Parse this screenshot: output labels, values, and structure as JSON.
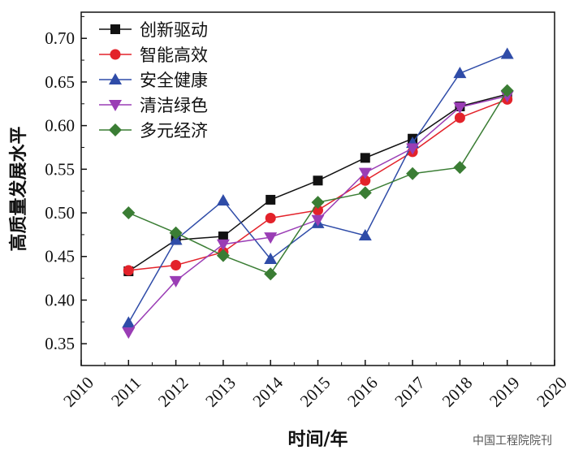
{
  "chart_data": {
    "type": "line",
    "xlabel": "时间/年",
    "ylabel": "高质量发展水平",
    "xlim": [
      2010,
      2020
    ],
    "ylim": [
      0.325,
      0.73
    ],
    "xticks": [
      "2010",
      "2011",
      "2012",
      "2013",
      "2014",
      "2015",
      "2016",
      "2017",
      "2018",
      "2019",
      "2020"
    ],
    "yticks": [
      "0.35",
      "0.40",
      "0.45",
      "0.50",
      "0.55",
      "0.60",
      "0.65",
      "0.70"
    ],
    "legend_position": "top-left",
    "grid": false,
    "x": [
      2011,
      2012,
      2013,
      2014,
      2015,
      2016,
      2017,
      2018,
      2019
    ],
    "series": [
      {
        "name": "创新驱动",
        "color": "#111111",
        "marker": "square",
        "values": [
          0.433,
          0.469,
          0.473,
          0.515,
          0.537,
          0.563,
          0.585,
          0.622,
          0.636
        ]
      },
      {
        "name": "智能高效",
        "color": "#e3222a",
        "marker": "circle",
        "values": [
          0.434,
          0.44,
          0.455,
          0.494,
          0.503,
          0.537,
          0.57,
          0.609,
          0.63
        ]
      },
      {
        "name": "安全健康",
        "color": "#2f4ca8",
        "marker": "triangle-up",
        "values": [
          0.374,
          0.469,
          0.514,
          0.447,
          0.488,
          0.474,
          0.58,
          0.66,
          0.682
        ]
      },
      {
        "name": "清洁绿色",
        "color": "#9a3db5",
        "marker": "triangle-down",
        "values": [
          0.363,
          0.422,
          0.464,
          0.472,
          0.492,
          0.546,
          0.574,
          0.621,
          0.634
        ]
      },
      {
        "name": "多元经济",
        "color": "#3a7d34",
        "marker": "diamond",
        "values": [
          0.5,
          0.477,
          0.451,
          0.43,
          0.512,
          0.523,
          0.545,
          0.552,
          0.64
        ]
      }
    ]
  },
  "watermark": "中国工程院院刊"
}
